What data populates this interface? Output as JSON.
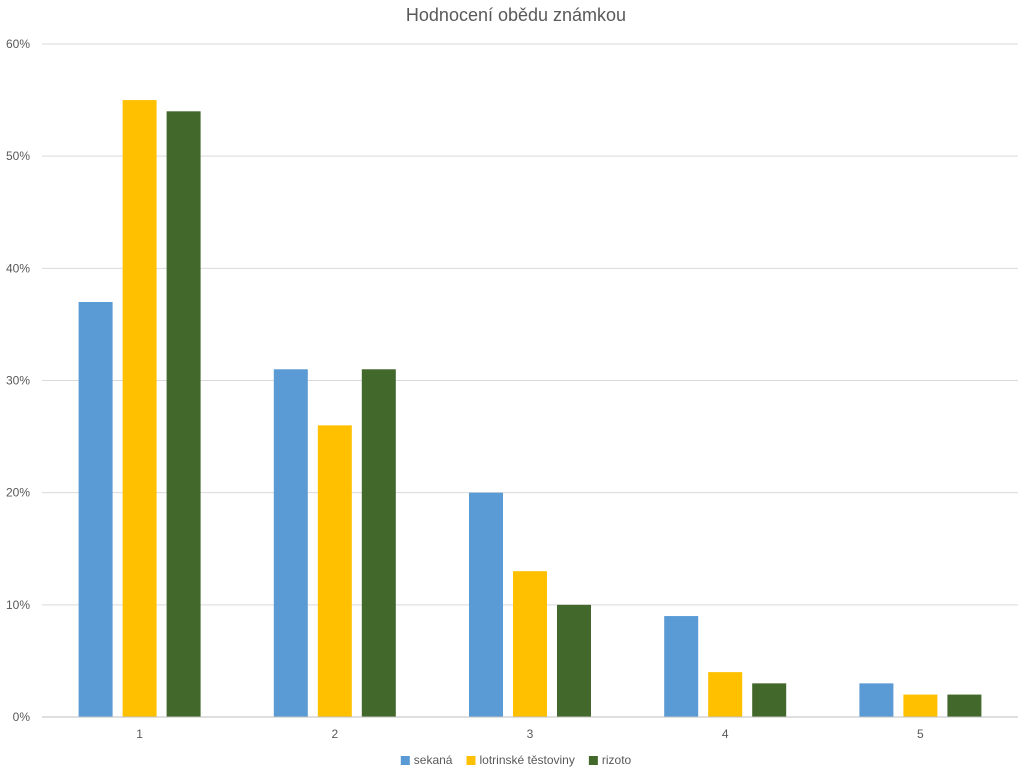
{
  "chart_data": {
    "type": "bar",
    "title": "Hodnocení obědu známkou",
    "xlabel": "",
    "ylabel": "",
    "categories": [
      "1",
      "2",
      "3",
      "4",
      "5"
    ],
    "ylim": [
      0,
      0.6
    ],
    "y_ticks": [
      0,
      0.1,
      0.2,
      0.3,
      0.4,
      0.5,
      0.6
    ],
    "y_tick_labels": [
      "0%",
      "10%",
      "20%",
      "30%",
      "40%",
      "50%",
      "60%"
    ],
    "grid": true,
    "legend_position": "bottom",
    "series": [
      {
        "name": "sekaná",
        "color": "#5b9bd5",
        "values": [
          0.37,
          0.31,
          0.2,
          0.09,
          0.03
        ]
      },
      {
        "name": "lotrinské těstoviny",
        "color": "#ffc000",
        "values": [
          0.55,
          0.26,
          0.13,
          0.04,
          0.02
        ]
      },
      {
        "name": "rizoto",
        "color": "#43682b",
        "values": [
          0.54,
          0.31,
          0.1,
          0.03,
          0.02
        ]
      }
    ]
  }
}
